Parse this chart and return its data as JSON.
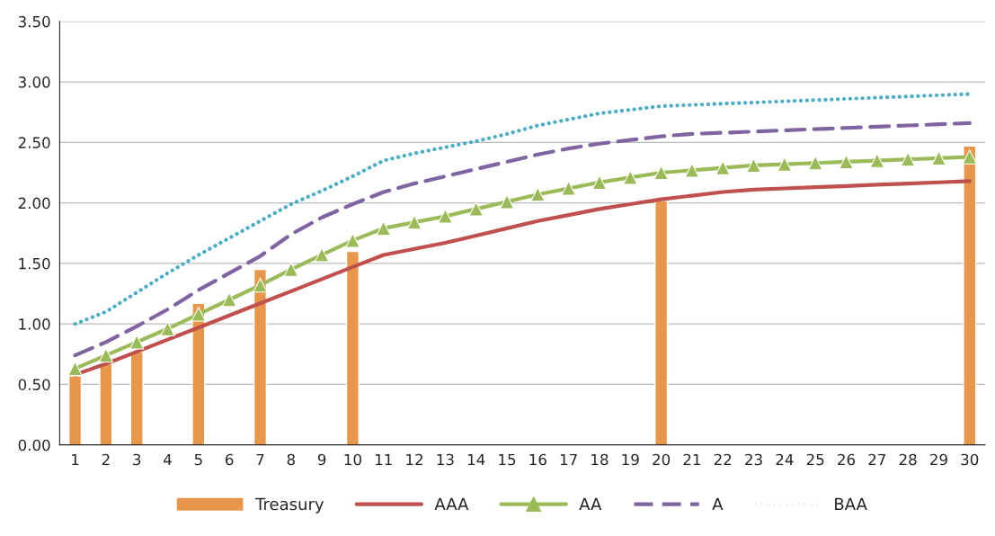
{
  "chart_data": {
    "type": "line",
    "categories": [
      "1",
      "2",
      "3",
      "4",
      "5",
      "6",
      "7",
      "8",
      "9",
      "10",
      "11",
      "12",
      "13",
      "14",
      "15",
      "16",
      "17",
      "18",
      "19",
      "20",
      "21",
      "22",
      "23",
      "24",
      "25",
      "26",
      "27",
      "28",
      "29",
      "30"
    ],
    "series": [
      {
        "name": "Treasury",
        "type": "bar",
        "color": "#e8964a",
        "values": [
          0.57,
          0.67,
          0.77,
          null,
          1.17,
          null,
          1.45,
          null,
          null,
          1.6,
          null,
          null,
          null,
          null,
          null,
          null,
          null,
          null,
          null,
          2.02,
          null,
          null,
          null,
          null,
          null,
          null,
          null,
          null,
          null,
          2.47
        ]
      },
      {
        "name": "AAA",
        "color": "#c0504d",
        "line_style": "solid",
        "marker": "none",
        "values": [
          0.58,
          0.67,
          0.77,
          0.87,
          0.97,
          1.07,
          1.17,
          1.27,
          1.37,
          1.47,
          1.57,
          1.62,
          1.67,
          1.73,
          1.79,
          1.85,
          1.9,
          1.95,
          1.99,
          2.03,
          2.06,
          2.09,
          2.11,
          2.12,
          2.13,
          2.14,
          2.15,
          2.16,
          2.17,
          2.18
        ]
      },
      {
        "name": "AA",
        "color": "#9bbb59",
        "line_style": "solid",
        "marker": "triangle",
        "values": [
          0.63,
          0.74,
          0.85,
          0.96,
          1.08,
          1.2,
          1.32,
          1.45,
          1.57,
          1.69,
          1.79,
          1.84,
          1.89,
          1.95,
          2.01,
          2.07,
          2.12,
          2.17,
          2.21,
          2.25,
          2.27,
          2.29,
          2.31,
          2.32,
          2.33,
          2.34,
          2.35,
          2.36,
          2.37,
          2.38
        ]
      },
      {
        "name": "A",
        "color": "#8064a2",
        "line_style": "dashed",
        "marker": "none",
        "values": [
          0.74,
          0.85,
          0.98,
          1.12,
          1.28,
          1.42,
          1.56,
          1.74,
          1.88,
          1.99,
          2.09,
          2.16,
          2.22,
          2.28,
          2.34,
          2.4,
          2.45,
          2.49,
          2.52,
          2.55,
          2.57,
          2.58,
          2.59,
          2.6,
          2.61,
          2.62,
          2.63,
          2.64,
          2.65,
          2.66
        ]
      },
      {
        "name": "BAA",
        "color": "#4bacc6",
        "line_style": "dotted",
        "marker": "none",
        "values": [
          1.0,
          1.1,
          1.26,
          1.42,
          1.57,
          1.71,
          1.85,
          1.99,
          2.1,
          2.22,
          2.35,
          2.41,
          2.46,
          2.51,
          2.57,
          2.64,
          2.69,
          2.74,
          2.77,
          2.8,
          2.81,
          2.82,
          2.83,
          2.84,
          2.85,
          2.86,
          2.87,
          2.88,
          2.89,
          2.9
        ]
      }
    ],
    "ylim": [
      0,
      3.5
    ],
    "yticks": [
      {
        "value": 0,
        "label": "0.00"
      },
      {
        "value": 0.5,
        "label": "0.50"
      },
      {
        "value": 1,
        "label": "1.00"
      },
      {
        "value": 1.5,
        "label": "1.50"
      },
      {
        "value": 2,
        "label": "2.00"
      },
      {
        "value": 2.5,
        "label": "2.50"
      },
      {
        "value": 3,
        "label": "3.00"
      },
      {
        "value": 3.5,
        "label": "3.50"
      }
    ],
    "grid": "y",
    "legend": "bottom"
  }
}
